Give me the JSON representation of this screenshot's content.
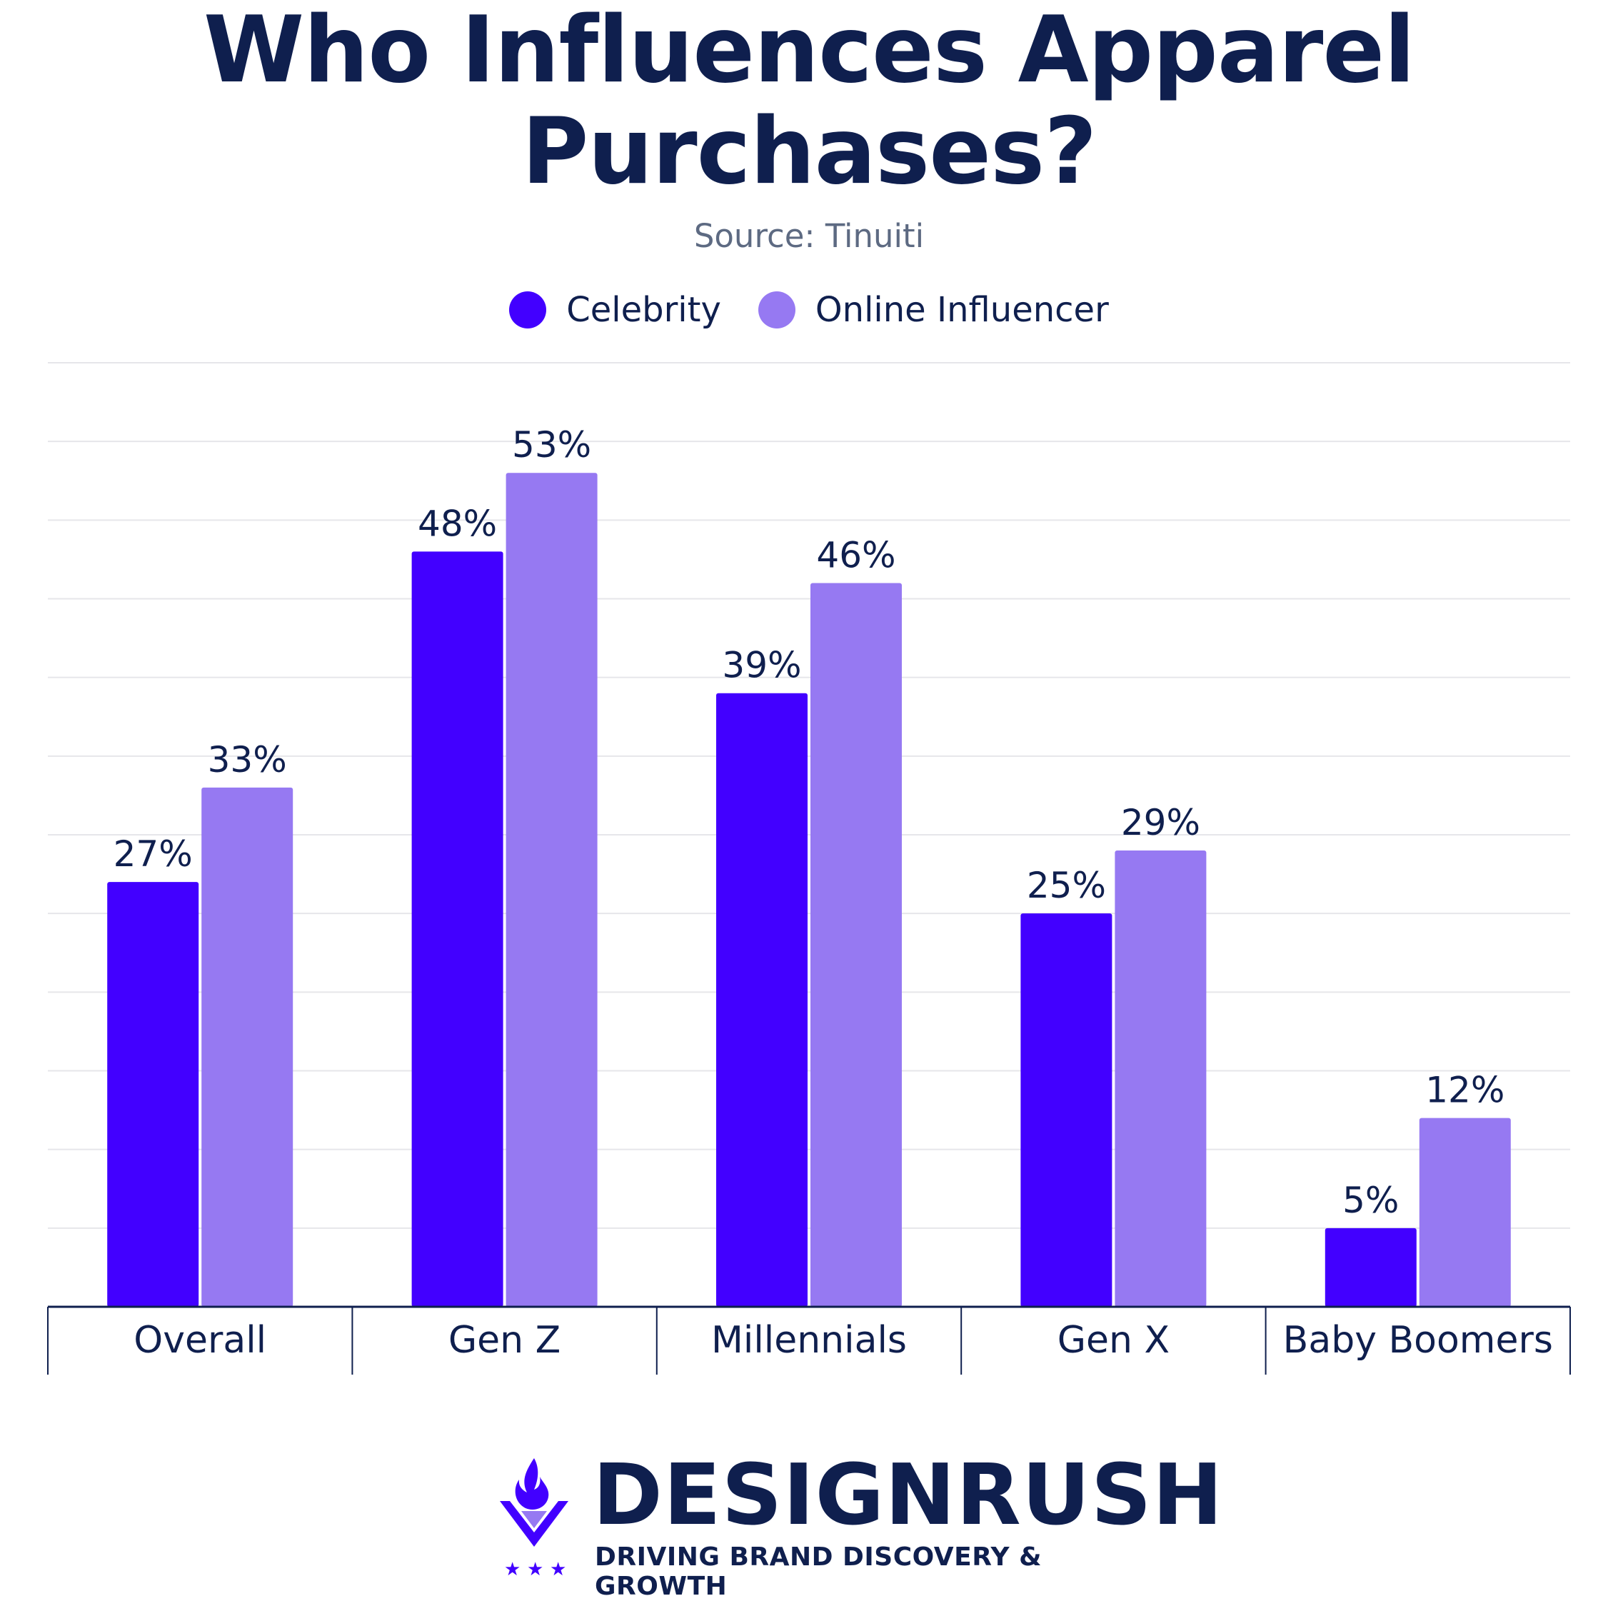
{
  "title_line1": "Who Influences Apparel",
  "title_line2": "Purchases?",
  "subtitle": "Source: Tinuiti",
  "colors": {
    "celebrity": "#4200ff",
    "online_influencer": "#9679f2",
    "text": "#0f1f4e",
    "grid": "#e6e6ea"
  },
  "legend": [
    {
      "label": "Celebrity",
      "color": "#4200ff"
    },
    {
      "label": "Online Influencer",
      "color": "#9679f2"
    }
  ],
  "chart_data": {
    "type": "bar",
    "title": "Who Influences Apparel Purchases?",
    "subtitle": "Source: Tinuiti",
    "categories": [
      "Overall",
      "Gen Z",
      "Millennials",
      "Gen X",
      "Baby Boomers"
    ],
    "series": [
      {
        "name": "Celebrity",
        "values": [
          27,
          48,
          39,
          25,
          5
        ],
        "labels": [
          "27%",
          "48%",
          "39%",
          "25%",
          "5%"
        ]
      },
      {
        "name": "Online Influencer",
        "values": [
          33,
          53,
          46,
          29,
          12
        ],
        "labels": [
          "33%",
          "53%",
          "46%",
          "29%",
          "12%"
        ]
      }
    ],
    "xlabel": "",
    "ylabel": "",
    "ylim": [
      0,
      60
    ],
    "grid": true,
    "legend_position": "top-center"
  },
  "footer": {
    "brand": "DESIGNRUSH",
    "tagline": "DRIVING BRAND DISCOVERY & GROWTH",
    "logo_icon": "flame-v-star-logo"
  }
}
